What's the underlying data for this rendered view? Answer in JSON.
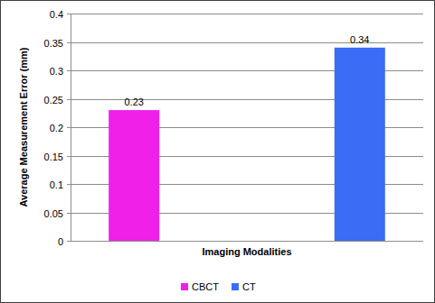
{
  "chart_data": {
    "type": "bar",
    "x_label": "Imaging Modalities",
    "y_label": "Average Measurement Error (mm)",
    "categories": [
      null
    ],
    "series": [
      {
        "name": "CBCT",
        "color": "#f020e8",
        "values": [
          0.23
        ]
      },
      {
        "name": "CT",
        "color": "#3b6cf5",
        "values": [
          0.34
        ]
      }
    ],
    "ylim": [
      0,
      0.4
    ],
    "yticks": [
      0,
      0.05,
      0.1,
      0.15,
      0.2,
      0.25,
      0.3,
      0.35,
      0.4
    ],
    "grid": true,
    "data_labels": true,
    "legend": "bottom"
  }
}
